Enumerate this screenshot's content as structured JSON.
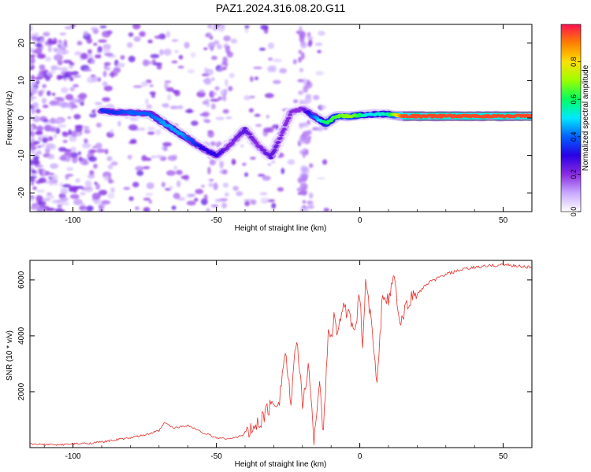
{
  "chart_data": [
    {
      "type": "heatmap",
      "title": "PAZ1.2024.316.08.20.G11",
      "xlabel": "Height of straight line (km)",
      "ylabel": "Frequency (Hz)",
      "xlim": [
        -115,
        60
      ],
      "ylim": [
        -25,
        25
      ],
      "xticks": [
        -100,
        -50,
        0,
        50
      ],
      "yticks": [
        -20,
        -10,
        0,
        10,
        20
      ],
      "grid": false,
      "colorbar": {
        "label": "Normalized spectral amplitude",
        "range": [
          0,
          1
        ],
        "ticks": [
          "0.0",
          "0.2",
          "0.4",
          "0.6",
          "0.8"
        ],
        "colors": [
          "#ffffff",
          "#c8a8ff",
          "#8a2be2",
          "#2a00e6",
          "#0060ff",
          "#00e8ff",
          "#00ff60",
          "#9aff00",
          "#ffe000",
          "#ff8000",
          "#ff1050"
        ]
      },
      "ridge": [
        {
          "x": -90,
          "f": 2.0,
          "a": 0.35
        },
        {
          "x": -85,
          "f": 1.5,
          "a": 0.35
        },
        {
          "x": -80,
          "f": 1.5,
          "a": 0.4
        },
        {
          "x": -73,
          "f": 1.0,
          "a": 0.4
        },
        {
          "x": -68,
          "f": -1.5,
          "a": 0.45
        },
        {
          "x": -62,
          "f": -4.5,
          "a": 0.45
        },
        {
          "x": -55,
          "f": -8.0,
          "a": 0.3
        },
        {
          "x": -50,
          "f": -10.0,
          "a": 0.3
        },
        {
          "x": -45,
          "f": -7.0,
          "a": 0.2
        },
        {
          "x": -40,
          "f": -3.0,
          "a": 0.25
        },
        {
          "x": -36,
          "f": -7.0,
          "a": 0.2
        },
        {
          "x": -31,
          "f": -10.5,
          "a": 0.25
        },
        {
          "x": -27,
          "f": -4.0,
          "a": 0.2
        },
        {
          "x": -24,
          "f": 1.5,
          "a": 0.2
        },
        {
          "x": -20,
          "f": 2.5,
          "a": 0.2
        },
        {
          "x": -12,
          "f": -1.5,
          "a": 0.6
        },
        {
          "x": -8,
          "f": 0.5,
          "a": 0.65
        },
        {
          "x": -3,
          "f": 0.5,
          "a": 0.7
        },
        {
          "x": 3,
          "f": 1.0,
          "a": 0.5
        },
        {
          "x": 10,
          "f": 1.0,
          "a": 0.55
        },
        {
          "x": 15,
          "f": 0.5,
          "a": 0.95
        },
        {
          "x": 30,
          "f": 0.5,
          "a": 0.95
        },
        {
          "x": 45,
          "f": 0.5,
          "a": 0.95
        },
        {
          "x": 60,
          "f": 0.5,
          "a": 0.95
        }
      ]
    },
    {
      "type": "line",
      "xlabel": "Height of straight line (km)",
      "ylabel": "SNR (10 * v/v)",
      "xlim": [
        -115,
        60
      ],
      "ylim": [
        0,
        6700
      ],
      "xticks": [
        -100,
        -50,
        0,
        50
      ],
      "yticks": [
        2000,
        4000,
        6000
      ],
      "line_color": "#e8302a",
      "series": [
        {
          "x": [
            -115,
            -110,
            -105,
            -100,
            -95,
            -90,
            -85,
            -80,
            -75,
            -70,
            -68,
            -65,
            -60,
            -55,
            -50,
            -45,
            -42,
            -38,
            -35,
            -32,
            -28,
            -26,
            -24,
            -22,
            -20,
            -18,
            -16,
            -14,
            -13,
            -12,
            -11,
            -10,
            -9,
            -8,
            -6,
            -4,
            -2,
            0,
            1,
            2,
            4,
            6,
            8,
            10,
            12,
            14,
            16,
            18,
            20,
            22,
            24,
            26,
            28,
            30,
            35,
            40,
            45,
            50,
            55,
            60
          ],
          "y": [
            120,
            110,
            100,
            130,
            150,
            200,
            280,
            350,
            450,
            600,
            900,
            700,
            800,
            550,
            350,
            320,
            400,
            600,
            900,
            1400,
            1800,
            3500,
            1500,
            4000,
            1500,
            3000,
            350,
            2500,
            400,
            1800,
            4300,
            3800,
            4700,
            4200,
            5000,
            4800,
            4000,
            5500,
            3600,
            6000,
            4500,
            2200,
            5600,
            5200,
            6200,
            4300,
            5000,
            5400,
            5500,
            5700,
            5900,
            6000,
            6100,
            6200,
            6350,
            6450,
            6500,
            6550,
            6500,
            6450
          ]
        }
      ]
    }
  ]
}
